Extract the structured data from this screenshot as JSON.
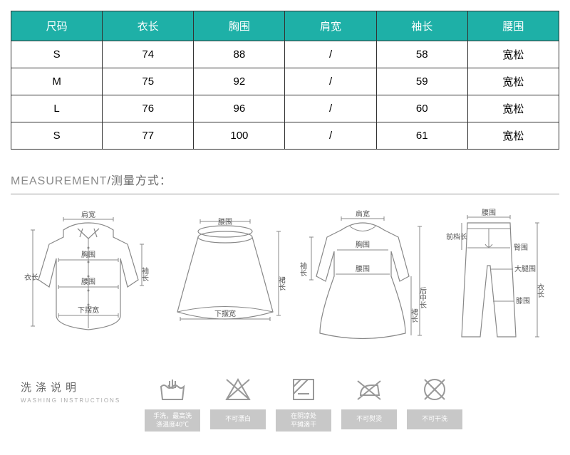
{
  "size_table": {
    "header_bg": "#1eb0a7",
    "header_color": "#ffffff",
    "border_color": "#333333",
    "columns": [
      "尺码",
      "衣长",
      "胸围",
      "肩宽",
      "袖长",
      "腰围"
    ],
    "rows": [
      [
        "S",
        "74",
        "88",
        "/",
        "58",
        "宽松"
      ],
      [
        "M",
        "75",
        "92",
        "/",
        "59",
        "宽松"
      ],
      [
        "L",
        "76",
        "96",
        "/",
        "60",
        "宽松"
      ],
      [
        "S",
        "77",
        "100",
        "/",
        "61",
        "宽松"
      ]
    ]
  },
  "measurement": {
    "title_en": "MEASUREMENT",
    "title_cn": "/测量方式：",
    "labels": {
      "shoulder": "肩宽",
      "bust": "胸围",
      "waist": "腰围",
      "hem": "下摆宽",
      "body_length": "衣长",
      "sleeve_length": "袖长",
      "skirt_length": "裙长",
      "back_mid_length": "后中长",
      "hip": "臀围",
      "thigh": "大腿围",
      "knee": "膝围",
      "pant_length": "衣长",
      "front_rise": "前档长"
    }
  },
  "washing": {
    "label_cn": "洗涤说明",
    "label_en": "WASHING INSTRUCTIONS",
    "items": [
      {
        "icon": "handwash",
        "caption": "手洗，最高洗\n涤温度40℃"
      },
      {
        "icon": "no-bleach",
        "caption": "不可漂白"
      },
      {
        "icon": "dry-shade",
        "caption": "在阴凉处\n平摊滴干"
      },
      {
        "icon": "no-iron",
        "caption": "不可熨烫"
      },
      {
        "icon": "no-dryclean",
        "caption": "不可干洗"
      }
    ]
  }
}
